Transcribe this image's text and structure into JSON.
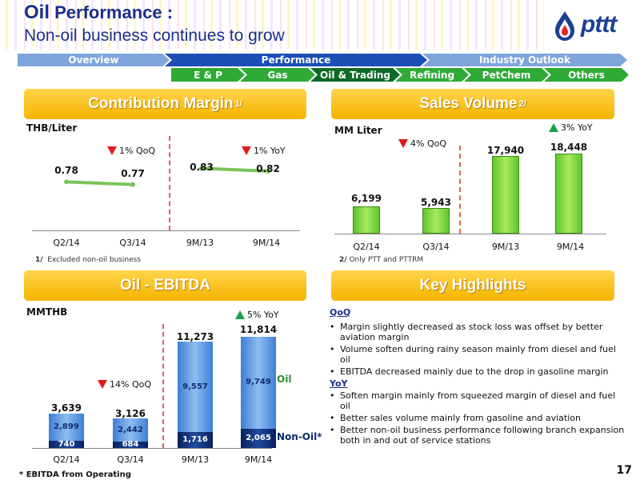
{
  "header": {
    "title_highlight": "Oil",
    "title_rest": " Performance :",
    "subtitle": "Non-oil business continues to grow",
    "logo_text": "pttt"
  },
  "nav": {
    "main": [
      "Overview",
      "Performance",
      "Industry Outlook"
    ],
    "sub": [
      "E & P",
      "Gas",
      "Oil & Trading",
      "Refining",
      "PetChem",
      "Others"
    ]
  },
  "cm": {
    "title": "Contribution Margin",
    "title_sup": "1/",
    "unit": "THB/Liter",
    "note_sup": "1/",
    "note": "Excluded non-oil business",
    "qoq": "1% QoQ",
    "yoy": "1% YoY"
  },
  "sv": {
    "title": "Sales Volume",
    "title_sup": "2/",
    "unit": "MM Liter",
    "note_sup": "2/",
    "note": "Only PTT and PTTRM",
    "qoq": "4% QoQ",
    "yoy": "3% YoY"
  },
  "eb": {
    "title": "Oil - EBITDA",
    "unit": "MMTHB",
    "qoq": "14% QoQ",
    "yoy": "5% YoY",
    "legend_oil": "Oil",
    "legend_nonoil": "Non-Oil*",
    "footnote": "*   EBITDA from Operating"
  },
  "highlights": {
    "title": "Key Highlights",
    "qoq_label": "QoQ",
    "qoq_items": [
      "Margin slightly decreased as stock loss was offset by better aviation margin",
      "Volume soften during rainy season mainly from diesel and fuel oil",
      "EBITDA decreased mainly due to the drop in gasoline margin"
    ],
    "yoy_label": "YoY",
    "yoy_items": [
      "Soften margin mainly from squeezed margin of diesel and fuel oil",
      "Better sales volume mainly from gasoline and aviation",
      "Better non-oil business performance following branch expansion both in and out of service stations"
    ]
  },
  "page_number": "17",
  "chart_data": [
    {
      "type": "line",
      "title": "Contribution Margin",
      "ylabel": "THB/Liter",
      "categories": [
        "Q2/14",
        "Q3/14",
        "9M/13",
        "9M/14"
      ],
      "labels": [
        "0.78",
        "0.77",
        "0.83",
        "0.82"
      ],
      "values": [
        0.78,
        0.77,
        0.83,
        0.82
      ],
      "ylim": [
        0.6,
        0.95
      ],
      "color": "#7cc35a"
    },
    {
      "type": "bar",
      "title": "Sales Volume",
      "ylabel": "MM Liter",
      "categories": [
        "Q2/14",
        "Q3/14",
        "9M/13",
        "9M/14"
      ],
      "labels": [
        "6,199",
        "5,943",
        "17,940",
        "18,448"
      ],
      "values": [
        6199,
        5943,
        17940,
        18448
      ],
      "ylim": [
        0,
        24000
      ],
      "color": "#7ed957"
    },
    {
      "type": "bar",
      "stacked": true,
      "title": "Oil - EBITDA",
      "ylabel": "MMTHB",
      "categories": [
        "Q2/14",
        "Q3/14",
        "9M/13",
        "9M/14"
      ],
      "totals": [
        "3,639",
        "3,126",
        "11,273",
        "11,814"
      ],
      "series": [
        {
          "name": "Non-Oil*",
          "values": [
            740,
            684,
            1716,
            2065
          ],
          "labels": [
            "740",
            "684",
            "1,716",
            "2,065"
          ],
          "color": "#0d2b6e"
        },
        {
          "name": "Oil",
          "values": [
            2899,
            2442,
            9557,
            9749
          ],
          "labels": [
            "2,899",
            "2,442",
            "9,557",
            "9,749"
          ],
          "color": "#5b9be6"
        }
      ],
      "ylim": [
        0,
        12500
      ]
    }
  ]
}
